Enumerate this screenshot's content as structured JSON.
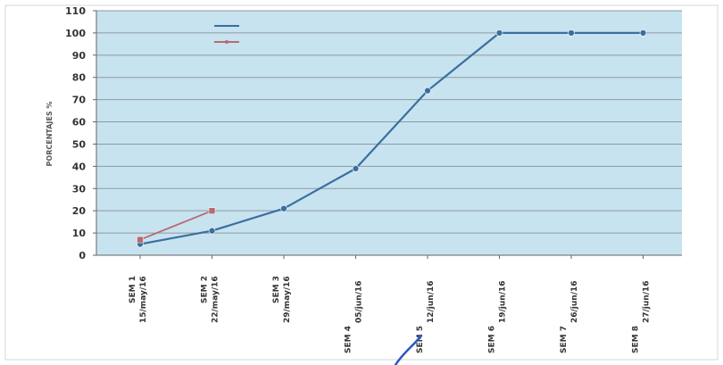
{
  "chart_data": {
    "type": "line",
    "title": "",
    "xlabel": "",
    "ylabel": "PORCENTAJES %",
    "ylim": [
      0,
      110
    ],
    "yticks": [
      0,
      10,
      20,
      30,
      40,
      50,
      60,
      70,
      80,
      90,
      100,
      110
    ],
    "grid": true,
    "legend_position": "top-left",
    "colors": {
      "plot_background": "#c7e3f0",
      "gridline": "#8f99a0",
      "axis": "#666666",
      "series_1": "#3a6f9f",
      "series_2": "#b86a70",
      "annotation_stroke": "#2a56c8"
    },
    "x_categories": [
      {
        "sem": "SEM 1",
        "date": "15/may/16"
      },
      {
        "sem": "SEM 2",
        "date": "22/may/16"
      },
      {
        "sem": "SEM 3",
        "date": "29/may/16"
      },
      {
        "sem": "SEM 4",
        "date": "05/jun/16"
      },
      {
        "sem": "SEM 5",
        "date": "12/jun/16"
      },
      {
        "sem": "SEM 6",
        "date": "19/jun/16"
      },
      {
        "sem": "SEM 7",
        "date": "26/jun/16"
      },
      {
        "sem": "SEM 8",
        "date": "27/jun/16"
      }
    ],
    "series": [
      {
        "values": [
          5,
          11,
          21,
          39,
          74,
          100,
          100,
          100
        ]
      },
      {
        "values": [
          7,
          20
        ]
      }
    ]
  }
}
